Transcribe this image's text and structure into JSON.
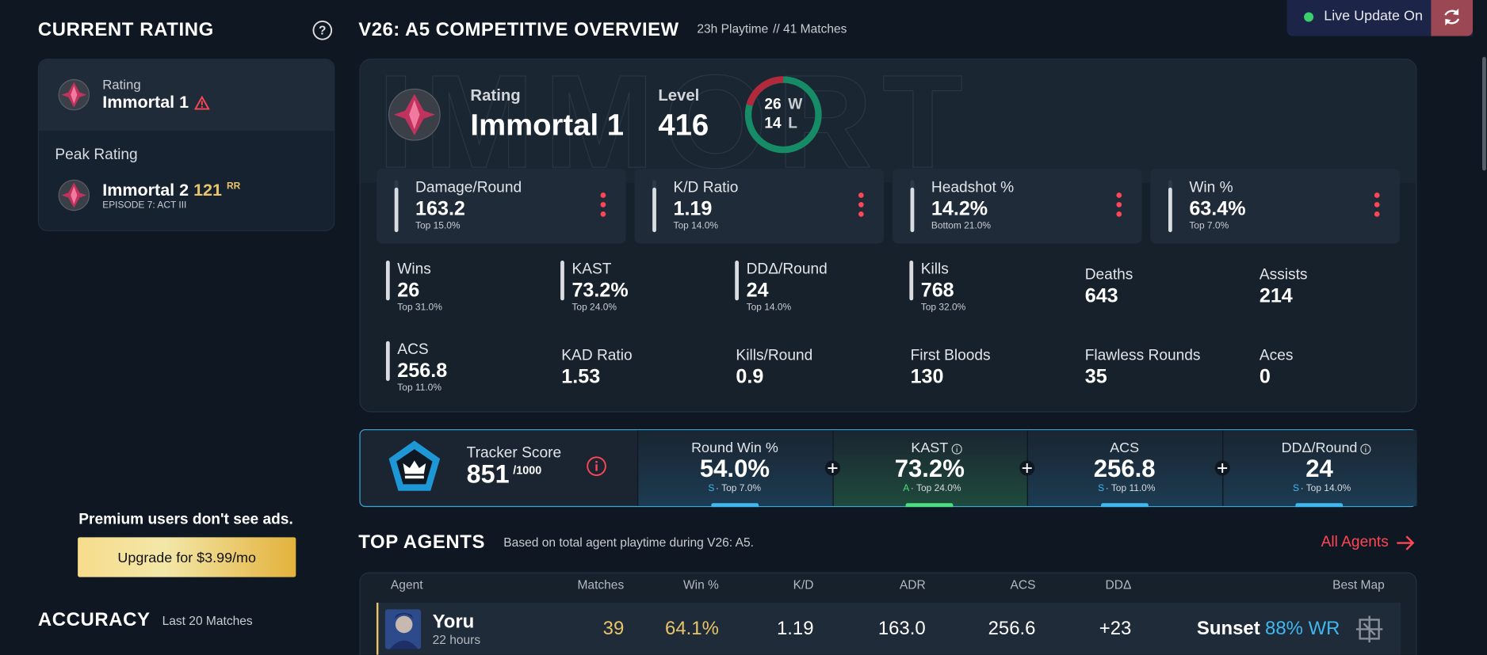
{
  "current_rating": {
    "heading": "CURRENT RATING",
    "label": "Rating",
    "rank": "Immortal 1"
  },
  "peak_rating": {
    "heading": "Peak Rating",
    "rank": "Immortal 2",
    "rr": "121",
    "rr_unit": "RR",
    "episode": "EPISODE 7: ACT III"
  },
  "ad": {
    "text": "Premium users don't see ads.",
    "button": "Upgrade for $3.99/mo"
  },
  "accuracy": {
    "heading": "ACCURACY",
    "subtitle": "Last 20 Matches"
  },
  "live_update": "Live Update On",
  "overview": {
    "title": "V26: A5 COMPETITIVE OVERVIEW",
    "playtime": "23h Playtime",
    "matches": "// 41 Matches",
    "watermark": "IMMORT",
    "rating_label": "Rating",
    "rating": "Immortal 1",
    "level_label": "Level",
    "level": "416",
    "wins": "26",
    "wins_unit": "W",
    "losses": "14",
    "losses_unit": "L",
    "main_stats": [
      {
        "label": "Damage/Round",
        "value": "163.2",
        "rank": "Top 15.0%"
      },
      {
        "label": "K/D Ratio",
        "value": "1.19",
        "rank": "Top 14.0%"
      },
      {
        "label": "Headshot %",
        "value": "14.2%",
        "rank": "Bottom 21.0%"
      },
      {
        "label": "Win %",
        "value": "63.4%",
        "rank": "Top 7.0%"
      }
    ],
    "stats": [
      {
        "label": "Wins",
        "value": "26",
        "rank": "Top 31.0%"
      },
      {
        "label": "KAST",
        "value": "73.2%",
        "rank": "Top 24.0%"
      },
      {
        "label": "DDΔ/Round",
        "value": "24",
        "rank": "Top 14.0%"
      },
      {
        "label": "Kills",
        "value": "768",
        "rank": "Top 32.0%"
      },
      {
        "label": "Deaths",
        "value": "643"
      },
      {
        "label": "Assists",
        "value": "214"
      },
      {
        "label": "ACS",
        "value": "256.8",
        "rank": "Top 11.0%"
      },
      {
        "label": "KAD Ratio",
        "value": "1.53"
      },
      {
        "label": "Kills/Round",
        "value": "0.9"
      },
      {
        "label": "First Bloods",
        "value": "130"
      },
      {
        "label": "Flawless Rounds",
        "value": "35"
      },
      {
        "label": "Aces",
        "value": "0"
      }
    ]
  },
  "tracker_score": {
    "label": "Tracker Score",
    "score": "851",
    "max": "/1000",
    "items": [
      {
        "label": "Round Win %",
        "value": "54.0%",
        "grade": "S",
        "rank": "· Top 7.0%"
      },
      {
        "label": "KAST",
        "value": "73.2%",
        "grade": "A",
        "rank": "· Top 24.0%"
      },
      {
        "label": "ACS",
        "value": "256.8",
        "grade": "S",
        "rank": "· Top 11.0%"
      },
      {
        "label": "DDΔ/Round",
        "value": "24",
        "grade": "S",
        "rank": "· Top 14.0%"
      }
    ]
  },
  "top_agents": {
    "heading": "TOP AGENTS",
    "subtitle": "Based on total agent playtime during V26: A5.",
    "link": "All Agents",
    "columns": [
      "Agent",
      "Matches",
      "Win %",
      "K/D",
      "ADR",
      "ACS",
      "DDΔ",
      "Best Map"
    ],
    "rows": [
      {
        "agent": "Yoru",
        "playtime": "22 hours",
        "matches": "39",
        "win_pct": "64.1%",
        "kd": "1.19",
        "adr": "163.0",
        "acs": "256.6",
        "dd": "+23",
        "best_map": "Sunset",
        "map_win": "88% WR"
      }
    ]
  }
}
